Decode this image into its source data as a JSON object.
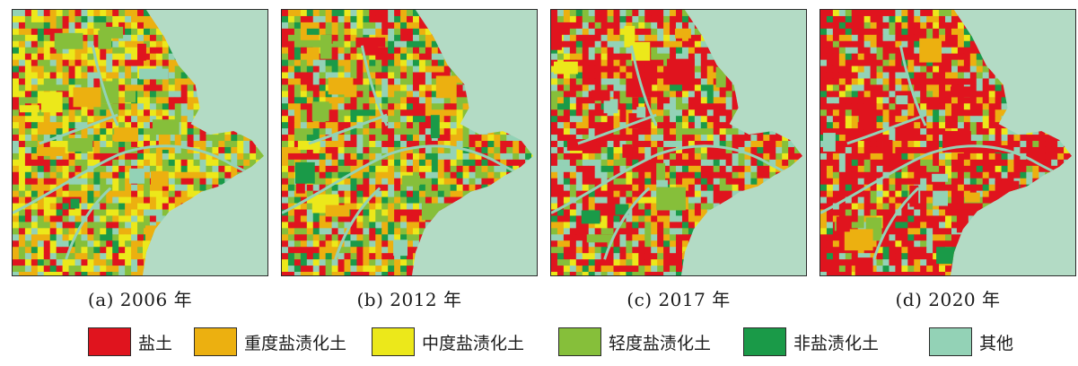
{
  "panels": [
    {
      "caption": "(a) 2006 年",
      "year": "2006"
    },
    {
      "caption": "(b) 2012 年",
      "year": "2012"
    },
    {
      "caption": "(c) 2017 年",
      "year": "2017"
    },
    {
      "caption": "(d) 2020 年",
      "year": "2020"
    }
  ],
  "legend": [
    {
      "label": "盐土",
      "color": "#e0141e"
    },
    {
      "label": "重度盐渍化土",
      "color": "#ecb010"
    },
    {
      "label": "中度盐渍化土",
      "color": "#ece81a"
    },
    {
      "label": "轻度盐渍化土",
      "color": "#86bf3a"
    },
    {
      "label": "非盐渍化土",
      "color": "#1a9a48"
    },
    {
      "label": "其他",
      "color": "#93d2b6"
    }
  ],
  "colors": {
    "sea": "#b3dbc5",
    "other": "#93d2b6",
    "frame": "#2b2b2b"
  }
}
